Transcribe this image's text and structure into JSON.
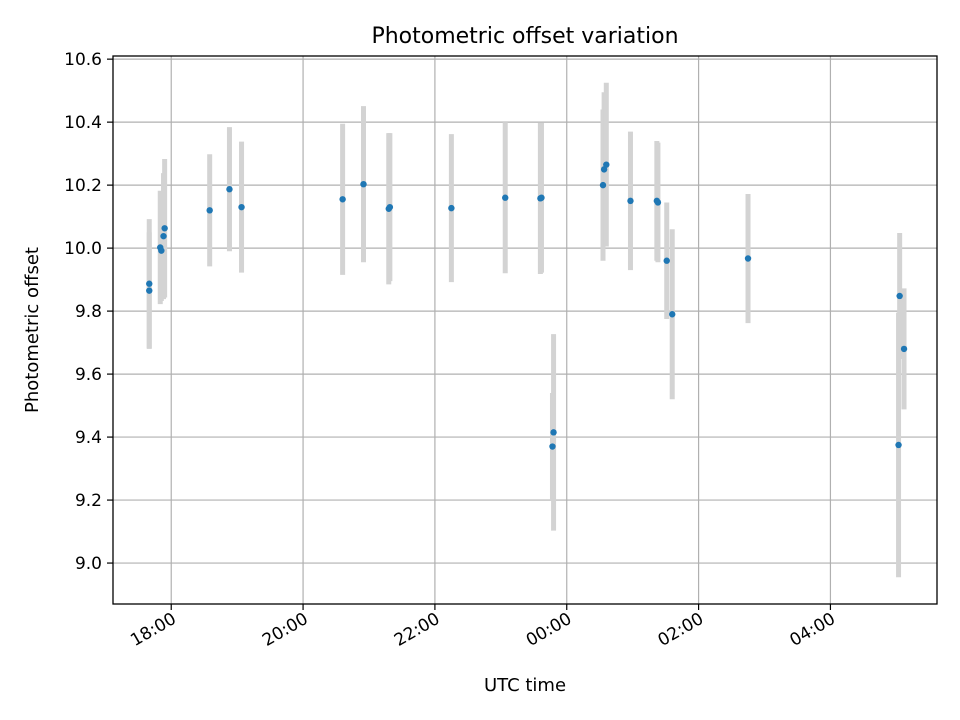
{
  "chart_data": {
    "type": "scatter",
    "title": "Photometric offset variation",
    "xlabel": "UTC time",
    "ylabel": "Photometric offset",
    "x_axis_type": "time",
    "x_range": [
      "17:07",
      "05:37"
    ],
    "ylim": [
      8.87,
      10.61
    ],
    "yticks": [
      9.0,
      9.2,
      9.4,
      9.6,
      9.8,
      10.0,
      10.2,
      10.4,
      10.6
    ],
    "xticks": [
      "18:00",
      "20:00",
      "22:00",
      "00:00",
      "02:00",
      "04:00"
    ],
    "grid": true,
    "legend": false,
    "colors": {
      "point": "#1f77b4",
      "errorbar": "#d3d3d3",
      "grid": "#b0b0b0"
    },
    "series": [
      {
        "points": [
          {
            "t": "17:40",
            "y": 9.887,
            "err": 0.205
          },
          {
            "t": "17:40",
            "y": 9.865,
            "err": 0.185
          },
          {
            "t": "17:50",
            "y": 10.002,
            "err": 0.18
          },
          {
            "t": "17:51",
            "y": 9.992,
            "err": 0.16
          },
          {
            "t": "17:53",
            "y": 10.038,
            "err": 0.2
          },
          {
            "t": "17:54",
            "y": 10.063,
            "err": 0.22
          },
          {
            "t": "18:35",
            "y": 10.12,
            "err": 0.178
          },
          {
            "t": "18:53",
            "y": 10.187,
            "err": 0.197
          },
          {
            "t": "19:04",
            "y": 10.13,
            "err": 0.208
          },
          {
            "t": "20:36",
            "y": 10.155,
            "err": 0.24
          },
          {
            "t": "20:55",
            "y": 10.203,
            "err": 0.248
          },
          {
            "t": "21:18",
            "y": 10.125,
            "err": 0.24
          },
          {
            "t": "21:19",
            "y": 10.13,
            "err": 0.235
          },
          {
            "t": "22:15",
            "y": 10.127,
            "err": 0.235
          },
          {
            "t": "23:04",
            "y": 10.16,
            "err": 0.24
          },
          {
            "t": "23:36",
            "y": 10.158,
            "err": 0.24
          },
          {
            "t": "23:37",
            "y": 10.16,
            "err": 0.238
          },
          {
            "t": "23:47",
            "y": 9.37,
            "err": 0.17
          },
          {
            "t": "23:48",
            "y": 9.415,
            "err": 0.312
          },
          {
            "t": "00:33",
            "y": 10.2,
            "err": 0.24
          },
          {
            "t": "00:34",
            "y": 10.25,
            "err": 0.245
          },
          {
            "t": "00:36",
            "y": 10.265,
            "err": 0.26
          },
          {
            "t": "00:58",
            "y": 10.15,
            "err": 0.22
          },
          {
            "t": "01:22",
            "y": 10.15,
            "err": 0.19
          },
          {
            "t": "01:23",
            "y": 10.145,
            "err": 0.19
          },
          {
            "t": "01:31",
            "y": 9.96,
            "err": 0.185
          },
          {
            "t": "01:36",
            "y": 9.79,
            "err": 0.27
          },
          {
            "t": "02:45",
            "y": 9.967,
            "err": 0.205
          },
          {
            "t": "05:02",
            "y": 9.375,
            "err": 0.42
          },
          {
            "t": "05:03",
            "y": 9.848,
            "err": 0.2
          },
          {
            "t": "05:07",
            "y": 9.68,
            "err": 0.192
          }
        ]
      }
    ]
  }
}
